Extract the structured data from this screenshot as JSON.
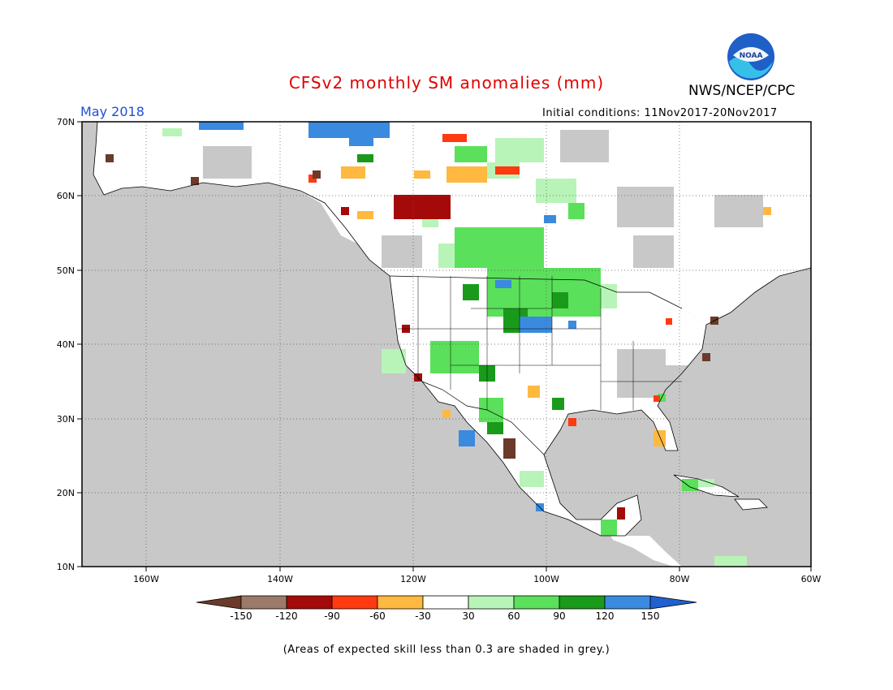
{
  "header": {
    "title": "CFSv2 monthly SM anomalies (mm)",
    "agency": "NWS/NCEP/CPC",
    "month": "May 2018",
    "initial_conditions": "Initial conditions: 11Nov2017-20Nov2017",
    "logo_text": "NOAA"
  },
  "colors": {
    "title": "#e00000",
    "month": "#1f4fd6",
    "grey_skill": "#c8c8c8",
    "background": "#ffffff"
  },
  "map": {
    "lat_labels": [
      "70N",
      "60N",
      "50N",
      "40N",
      "30N",
      "20N",
      "10N"
    ],
    "lon_labels": [
      "160W",
      "140W",
      "120W",
      "100W",
      "80W",
      "60W"
    ]
  },
  "legend": {
    "labels": [
      "-150",
      "-120",
      "-90",
      "-60",
      "-30",
      "30",
      "60",
      "90",
      "120",
      "150"
    ],
    "colors": [
      "#6b3a2a",
      "#9c7a6a",
      "#a50a0a",
      "#ff3a10",
      "#ffb840",
      "#ffffff",
      "#b8f4b8",
      "#5ae05a",
      "#1a9a1a",
      "#3a8ae0",
      "#2060d0"
    ]
  },
  "footnote": "(Areas of expected skill less than 0.3 are shaded in grey.)"
}
